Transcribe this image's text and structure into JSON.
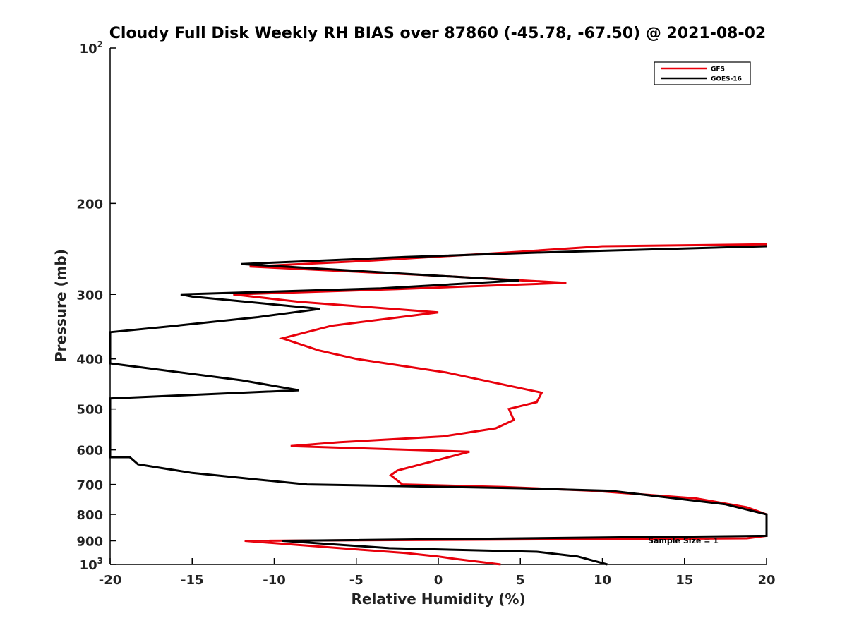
{
  "chart_data": {
    "type": "line",
    "title": "Cloudy Full Disk Weekly RH BIAS over 87860 (-45.78, -67.50) @ 2021-08-02",
    "xlabel": "Relative Humidity (%)",
    "ylabel": "Pressure (mb)",
    "xlim": [
      -20,
      20
    ],
    "ylim": [
      100,
      1000
    ],
    "y_scale": "log",
    "y_reversed": true,
    "grid": false,
    "legend_position": "top-right",
    "annotation": "Sample Size = 1",
    "x_ticks": [
      "-20",
      "-15",
      "-10",
      "-5",
      "0",
      "5",
      "10",
      "15",
      "20"
    ],
    "y_ticks": [
      {
        "value": 100,
        "base": "10",
        "exp": "2"
      },
      {
        "value": 200,
        "label": "200"
      },
      {
        "value": 300,
        "label": "300"
      },
      {
        "value": 400,
        "label": "400"
      },
      {
        "value": 500,
        "label": "500"
      },
      {
        "value": 600,
        "label": "600"
      },
      {
        "value": 700,
        "label": "700"
      },
      {
        "value": 800,
        "label": "800"
      },
      {
        "value": 900,
        "label": "900"
      },
      {
        "value": 1000,
        "base": "10",
        "exp": "3"
      }
    ],
    "series": [
      {
        "name": "GFS",
        "color": "#e8000b",
        "points": [
          [
            20.0,
            240
          ],
          [
            10.0,
            242
          ],
          [
            5.0,
            248
          ],
          [
            -4.0,
            258
          ],
          [
            -11.5,
            265
          ],
          [
            -1.0,
            275
          ],
          [
            7.8,
            285
          ],
          [
            -2.5,
            293
          ],
          [
            -12.5,
            300
          ],
          [
            -8.5,
            310
          ],
          [
            0.0,
            325
          ],
          [
            -6.5,
            345
          ],
          [
            -9.5,
            365
          ],
          [
            -7.3,
            385
          ],
          [
            -5.0,
            400
          ],
          [
            0.5,
            425
          ],
          [
            6.3,
            465
          ],
          [
            6.0,
            485
          ],
          [
            4.3,
            500
          ],
          [
            4.6,
            525
          ],
          [
            3.5,
            545
          ],
          [
            0.3,
            565
          ],
          [
            -6.0,
            580
          ],
          [
            -9.0,
            590
          ],
          [
            1.9,
            605
          ],
          [
            -2.5,
            658
          ],
          [
            -2.9,
            672
          ],
          [
            -2.2,
            700
          ],
          [
            4.0,
            708
          ],
          [
            9.5,
            720
          ],
          [
            15.7,
            745
          ],
          [
            18.8,
            775
          ],
          [
            20.0,
            800
          ],
          [
            20.0,
            880
          ],
          [
            18.8,
            890
          ],
          [
            -11.8,
            900
          ],
          [
            -5.0,
            935
          ],
          [
            -2.0,
            950
          ],
          [
            0.0,
            965
          ],
          [
            1.0,
            975
          ],
          [
            3.8,
            1000
          ]
        ]
      },
      {
        "name": "GOES-16",
        "color": "#000000",
        "points": [
          [
            20.0,
            242
          ],
          [
            6.0,
            249
          ],
          [
            -2.0,
            254
          ],
          [
            -12.0,
            262
          ],
          [
            4.9,
            282
          ],
          [
            -3.5,
            292
          ],
          [
            -15.7,
            300
          ],
          [
            -15.0,
            303
          ],
          [
            -7.2,
            320
          ],
          [
            -11.0,
            332
          ],
          [
            -16.0,
            345
          ],
          [
            -20.0,
            355
          ],
          [
            -20.0,
            408
          ],
          [
            -12.0,
            440
          ],
          [
            -8.5,
            460
          ],
          [
            -20.0,
            477
          ],
          [
            -20.0,
            620
          ],
          [
            -18.8,
            620
          ],
          [
            -18.3,
            640
          ],
          [
            -15.0,
            665
          ],
          [
            -11.0,
            685
          ],
          [
            -8.0,
            700
          ],
          [
            5.0,
            712
          ],
          [
            10.5,
            720
          ],
          [
            17.5,
            765
          ],
          [
            20.0,
            800
          ],
          [
            20.0,
            880
          ],
          [
            -9.5,
            900
          ],
          [
            -3.0,
            930
          ],
          [
            6.0,
            945
          ],
          [
            8.5,
            965
          ],
          [
            10.3,
            1000
          ]
        ]
      }
    ]
  }
}
